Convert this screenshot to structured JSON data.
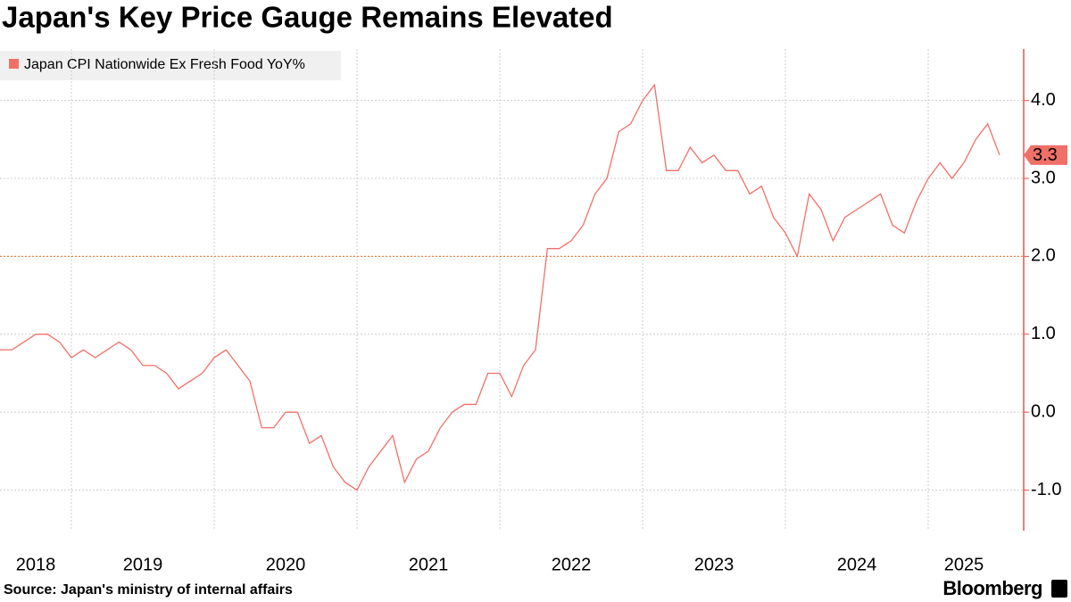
{
  "chart_data": {
    "type": "line",
    "title": "Japan's Key Price Gauge Remains Elevated",
    "source": "Source: Japan's ministry of internal affairs",
    "brand": "Bloomberg",
    "categories": [
      null,
      null,
      null,
      null,
      null,
      null,
      null,
      null,
      null,
      null,
      null,
      null,
      null,
      null,
      null,
      null,
      null,
      null,
      null,
      null,
      null,
      null,
      null,
      null,
      null,
      null,
      null,
      null,
      null,
      null,
      null,
      null,
      null,
      null,
      null,
      null,
      null,
      null,
      null,
      null,
      null,
      null,
      null,
      null,
      null,
      null,
      null,
      null,
      null,
      null,
      null,
      null,
      null,
      null,
      null,
      null,
      null,
      null,
      null,
      null,
      null,
      null,
      null,
      null,
      null,
      null,
      null,
      null,
      null,
      null,
      null,
      null,
      null,
      null,
      null,
      null,
      null,
      null,
      null,
      null,
      null,
      null,
      null,
      null,
      null
    ],
    "year_labels": [
      "2018",
      "2019",
      "2020",
      "2021",
      "2022",
      "2023",
      "2024",
      "2025"
    ],
    "series": [
      {
        "name": "Japan CPI Nationwide Ex Fresh Food YoY%",
        "color": "#f07068",
        "values": [
          0.8,
          0.8,
          0.9,
          1.0,
          1.0,
          0.9,
          0.7,
          0.8,
          0.7,
          0.8,
          0.9,
          0.8,
          0.6,
          0.6,
          0.5,
          0.3,
          0.4,
          0.5,
          0.7,
          0.8,
          0.6,
          0.4,
          -0.2,
          -0.2,
          0.0,
          0.0,
          -0.4,
          -0.3,
          -0.7,
          -0.9,
          -1.0,
          -0.7,
          -0.5,
          -0.3,
          -0.9,
          -0.6,
          -0.5,
          -0.2,
          0.0,
          0.1,
          0.1,
          0.5,
          0.5,
          0.2,
          0.6,
          0.8,
          2.1,
          2.1,
          2.2,
          2.4,
          2.8,
          3.0,
          3.6,
          3.7,
          4.0,
          4.2,
          3.1,
          3.1,
          3.4,
          3.2,
          3.3,
          3.1,
          3.1,
          2.8,
          2.9,
          2.5,
          2.3,
          2.0,
          2.8,
          2.6,
          2.2,
          2.5,
          2.6,
          2.7,
          2.8,
          2.4,
          2.3,
          2.7,
          3.0,
          3.2,
          3.0,
          3.2,
          3.5,
          3.7,
          3.3
        ],
        "last_value_label": "3.3"
      }
    ],
    "ylim": [
      -1.52,
      4.66
    ],
    "yticks": [
      {
        "value": -1,
        "label": "-1.0"
      },
      {
        "value": 0,
        "label": "0.0"
      },
      {
        "value": 1,
        "label": "1.0"
      },
      {
        "value": 2,
        "label": "2.0"
      },
      {
        "value": 3,
        "label": "3.0"
      },
      {
        "value": 4,
        "label": "4.0"
      }
    ],
    "reference_line": {
      "value": 2,
      "color": "#f07a3a"
    },
    "axis_color": "#e8544c",
    "grid": true,
    "legend": "top-left"
  }
}
